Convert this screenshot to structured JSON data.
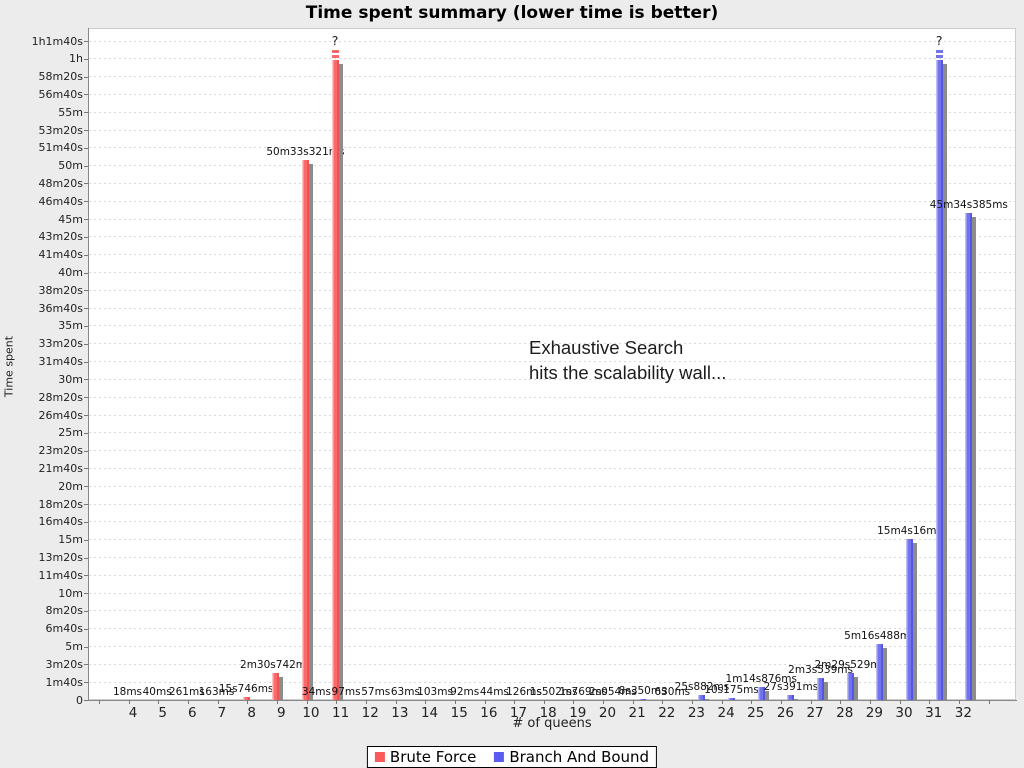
{
  "title": "Time spent summary (lower time is better)",
  "axes": {
    "y_label": "Time spent",
    "x_label": "# of queens",
    "y_ticks": [
      "0",
      "1m40s",
      "3m20s",
      "5m",
      "6m40s",
      "8m20s",
      "10m",
      "11m40s",
      "13m20s",
      "15m",
      "16m40s",
      "18m20s",
      "20m",
      "21m40s",
      "23m20s",
      "25m",
      "26m40s",
      "28m20s",
      "30m",
      "31m40s",
      "33m20s",
      "35m",
      "36m40s",
      "38m20s",
      "40m",
      "41m40s",
      "43m20s",
      "45m",
      "46m40s",
      "48m20s",
      "50m",
      "51m40s",
      "53m20s",
      "55m",
      "56m40s",
      "58m20s",
      "1h",
      "1h1m40s"
    ],
    "categories": [
      "4",
      "5",
      "6",
      "7",
      "8",
      "9",
      "10",
      "11",
      "12",
      "13",
      "14",
      "15",
      "16",
      "17",
      "18",
      "19",
      "20",
      "21",
      "22",
      "23",
      "24",
      "25",
      "26",
      "27",
      "28",
      "29",
      "30",
      "31",
      "32"
    ]
  },
  "annotation": {
    "line1": "Exhaustive Search",
    "line2": "hits the scalability wall..."
  },
  "legend": {
    "items": [
      {
        "label": "Brute Force",
        "color": "#fa5a5a"
      },
      {
        "label": "Branch And Bound",
        "color": "#5a5cf0"
      }
    ]
  },
  "chart_data": {
    "type": "bar",
    "title": "Time spent summary (lower time is better)",
    "xlabel": "# of queens",
    "ylabel": "Time spent",
    "unit": "seconds",
    "ylim": [
      0,
      3700
    ],
    "y_tick_step_seconds": 100,
    "grid": "horizontal-dashed",
    "legend_position": "bottom",
    "timeout_label": "?",
    "shadow_color": "#8c8c8c",
    "categories": [
      4,
      5,
      6,
      7,
      8,
      9,
      10,
      11,
      12,
      13,
      14,
      15,
      16,
      17,
      18,
      19,
      20,
      21,
      22,
      23,
      24,
      25,
      26,
      27,
      28,
      29,
      30,
      31,
      32
    ],
    "series": [
      {
        "name": "Brute Force",
        "color": "#fa5a5a",
        "color_light": "#ffc2c2",
        "color_mid": "#fa6a6a",
        "color_dark": "#ee5353",
        "points": [
          {
            "queens": 4,
            "label": "18ms",
            "seconds": 0.018
          },
          {
            "queens": 5,
            "label": "40ms",
            "seconds": 0.04
          },
          {
            "queens": 6,
            "label": "261ms",
            "seconds": 0.261
          },
          {
            "queens": 7,
            "label": "163ms",
            "seconds": 0.163
          },
          {
            "queens": 8,
            "label": "15s746ms",
            "seconds": 15.746
          },
          {
            "queens": 9,
            "label": "2m30s742ms",
            "seconds": 150.742
          },
          {
            "queens": 10,
            "label": "50m33s321ms",
            "seconds": 3033.321
          },
          {
            "queens": 11,
            "label": "?",
            "seconds": null,
            "timeout": true
          }
        ]
      },
      {
        "name": "Branch And Bound",
        "color": "#5a5cf0",
        "color_light": "#bdbdf8",
        "color_mid": "#7274ec",
        "color_dark": "#5557e0",
        "points": [
          {
            "queens": 10,
            "label": "34ms",
            "seconds": 0.034
          },
          {
            "queens": 11,
            "label": "97ms",
            "seconds": 0.097
          },
          {
            "queens": 12,
            "label": "57ms",
            "seconds": 0.057
          },
          {
            "queens": 13,
            "label": "63ms",
            "seconds": 0.063
          },
          {
            "queens": 14,
            "label": "103ms",
            "seconds": 0.103
          },
          {
            "queens": 15,
            "label": "92ms",
            "seconds": 0.092
          },
          {
            "queens": 16,
            "label": "44ms",
            "seconds": 0.044
          },
          {
            "queens": 17,
            "label": "126ms",
            "seconds": 0.126
          },
          {
            "queens": 18,
            "label": "1s502ms",
            "seconds": 1.502
          },
          {
            "queens": 19,
            "label": "1s769ms",
            "seconds": 1.769
          },
          {
            "queens": 20,
            "label": "2s054ms",
            "seconds": 2.054
          },
          {
            "queens": 21,
            "label": "8s350ms",
            "seconds": 8.35
          },
          {
            "queens": 22,
            "label": "630ms",
            "seconds": 0.63
          },
          {
            "queens": 23,
            "label": "25s882ms",
            "seconds": 25.882
          },
          {
            "queens": 24,
            "label": "10s175ms",
            "seconds": 10.175
          },
          {
            "queens": 25,
            "label": "1m14s876ms",
            "seconds": 74.876
          },
          {
            "queens": 26,
            "label": "27s391ms",
            "seconds": 27.391
          },
          {
            "queens": 27,
            "label": "2m3s539ms",
            "seconds": 123.539
          },
          {
            "queens": 28,
            "label": "2m29s529ms",
            "seconds": 149.529
          },
          {
            "queens": 29,
            "label": "5m16s488ms",
            "seconds": 316.488
          },
          {
            "queens": 30,
            "label": "15m4s16ms",
            "seconds": 904.016
          },
          {
            "queens": 31,
            "label": "?",
            "seconds": null,
            "timeout": true
          },
          {
            "queens": 32,
            "label": "45m34s385ms",
            "seconds": 2734.385
          }
        ]
      }
    ]
  }
}
